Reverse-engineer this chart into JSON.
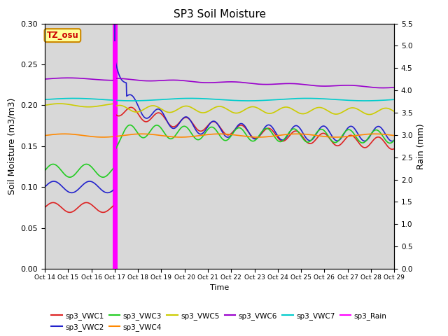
{
  "title": "SP3 Soil Moisture",
  "xlabel": "Time",
  "ylabel_left": "Soil Moisture (m3/m3)",
  "ylabel_right": "Rain (mm)",
  "annotation_text": "TZ_osu",
  "annotation_color": "#cc0000",
  "annotation_bg": "#ffff99",
  "annotation_border": "#cc8800",
  "ylim_left": [
    0.0,
    0.3
  ],
  "ylim_right": [
    0.0,
    5.5
  ],
  "bg_color": "#d8d8d8",
  "fig_bg": "#ffffff",
  "rain_day": 3.0,
  "n_days": 15,
  "xtick_labels": [
    "Oct 14",
    "Oct 15",
    "Oct 16",
    "Oct 17",
    "Oct 18",
    "Oct 19",
    "Oct 20",
    "Oct 21",
    "Oct 22",
    "Oct 23",
    "Oct 24",
    "Oct 25",
    "Oct 26",
    "Oct 27",
    "Oct 28",
    "Oct 29"
  ],
  "series_colors": {
    "VWC1": "#dd2222",
    "VWC2": "#2222cc",
    "VWC3": "#22cc22",
    "VWC4": "#ff8800",
    "VWC5": "#cccc00",
    "VWC6": "#9900cc",
    "VWC7": "#00cccc",
    "Rain": "#ff00ff"
  }
}
